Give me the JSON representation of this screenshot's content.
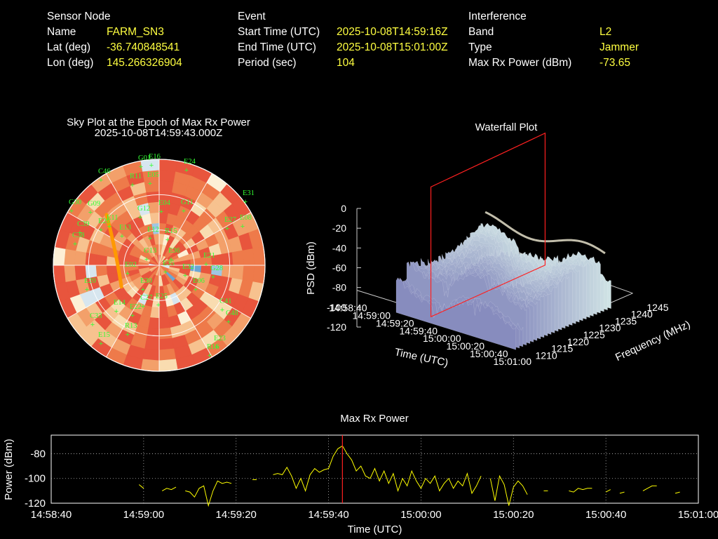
{
  "header": {
    "sensor": {
      "heading": "Sensor Node",
      "rows": [
        {
          "label": "Name",
          "value": "FARM_SN3"
        },
        {
          "label": "Lat (deg)",
          "value": "-36.740848541"
        },
        {
          "label": "Lon (deg)",
          "value": "145.266326904"
        }
      ]
    },
    "event": {
      "heading": "Event",
      "rows": [
        {
          "label": "Start Time (UTC)",
          "value": "2025-10-08T14:59:16Z"
        },
        {
          "label": "End Time (UTC)",
          "value": "2025-10-08T15:01:00Z"
        },
        {
          "label": "Period (sec)",
          "value": "104"
        }
      ]
    },
    "interference": {
      "heading": "Interference",
      "rows": [
        {
          "label": "Band",
          "value": "L2"
        },
        {
          "label": "Type",
          "value": "Jammer"
        },
        {
          "label": "Max Rx Power (dBm)",
          "value": "-73.65"
        }
      ]
    }
  },
  "colors": {
    "label": "#ffffff",
    "value": "#ffff40",
    "satellite_label": "#33ff33",
    "track": "#ff9900",
    "marker_line": "#ff2020",
    "power_line": "#ffff00",
    "grid": "#bbbbbb"
  },
  "chart_data": [
    {
      "type": "scatter",
      "title": "Sky Plot at the Epoch of Max Rx Power",
      "subtitle": "2025-10-08T14:59:43.000Z",
      "satellites": [
        "G01",
        "E16",
        "E24",
        "C46",
        "R11",
        "E05",
        "E31",
        "G30",
        "G09",
        "E26",
        "E11",
        "E13",
        "G12",
        "E04",
        "G11",
        "E27",
        "E08",
        "C38",
        "C39",
        "E12",
        "R15",
        "E36",
        "G13",
        "E02",
        "E32",
        "E21",
        "E06",
        "E20",
        "G28",
        "E30",
        "E25",
        "E22",
        "E14",
        "C27",
        "C41",
        "C48",
        "C33",
        "R13",
        "E15",
        "R16",
        "E23",
        "E35"
      ]
    },
    {
      "type": "area",
      "title": "Waterfall Plot",
      "xlabel": "Time (UTC)",
      "ylabel": "Frequency (MHz)",
      "zlabel": "PSD (dBm)",
      "x_ticks": [
        "14:58:40",
        "14:59:00",
        "14:59:20",
        "14:59:40",
        "15:00:00",
        "15:00:20",
        "15:00:40",
        "15:01:00"
      ],
      "y_ticks": [
        "1210",
        "1215",
        "1220",
        "1225",
        "1230",
        "1235",
        "1240",
        "1245"
      ],
      "z_ticks": [
        "0",
        "-20",
        "-40",
        "-60",
        "-80",
        "-100",
        "-120"
      ],
      "zlim": [
        -120,
        0
      ],
      "freq_range": [
        1210,
        1245
      ],
      "marker_time": "14:59:43"
    },
    {
      "type": "line",
      "title": "Max Rx Power",
      "xlabel": "Time (UTC)",
      "ylabel": "Power (dBm)",
      "x_ticks": [
        "14:58:40",
        "14:59:00",
        "14:59:20",
        "14:59:40",
        "15:00:00",
        "15:00:20",
        "15:00:40",
        "15:01:00"
      ],
      "y_ticks": [
        "-80",
        "-100",
        "-120"
      ],
      "ylim": [
        -120,
        -65
      ],
      "xlim_sec": [
        0,
        140
      ],
      "grid": true,
      "marker_sec": 63,
      "series": [
        {
          "segments": [
            [
              [
                19,
                -105
              ],
              [
                20,
                -108
              ]
            ],
            [
              [
                24,
                -110
              ],
              [
                25,
                -108
              ],
              [
                26,
                -109
              ],
              [
                27,
                -107
              ]
            ],
            [
              [
                29,
                -110
              ],
              [
                30,
                -111
              ],
              [
                31,
                -115
              ],
              [
                32,
                -108
              ],
              [
                33,
                -106
              ],
              [
                34,
                -122
              ],
              [
                35,
                -110
              ],
              [
                36,
                -102
              ],
              [
                37,
                -104
              ],
              [
                38,
                -103
              ],
              [
                39,
                -104
              ]
            ],
            [
              [
                44,
                -101
              ]
            ],
            [
              [
                48,
                -97
              ],
              [
                49,
                -96
              ],
              [
                50,
                -97
              ],
              [
                51,
                -91
              ],
              [
                52,
                -98
              ],
              [
                53,
                -108
              ],
              [
                54,
                -100
              ],
              [
                55,
                -110
              ],
              [
                56,
                -97
              ],
              [
                57,
                -92
              ],
              [
                58,
                -95
              ],
              [
                59,
                -93
              ],
              [
                60,
                -92
              ],
              [
                61,
                -82
              ],
              [
                62,
                -76
              ],
              [
                63,
                -73.65
              ],
              [
                64,
                -80
              ],
              [
                65,
                -85
              ],
              [
                66,
                -94
              ],
              [
                67,
                -90
              ],
              [
                68,
                -98
              ],
              [
                69,
                -100
              ],
              [
                70,
                -92
              ],
              [
                71,
                -102
              ],
              [
                72,
                -94
              ],
              [
                73,
                -104
              ],
              [
                74,
                -96
              ],
              [
                75,
                -110
              ],
              [
                76,
                -100
              ],
              [
                77,
                -106
              ],
              [
                78,
                -94
              ],
              [
                79,
                -102
              ],
              [
                80,
                -108
              ],
              [
                81,
                -100
              ],
              [
                82,
                -104
              ],
              [
                83,
                -98
              ],
              [
                84,
                -110
              ],
              [
                85,
                -104
              ],
              [
                86,
                -100
              ],
              [
                87,
                -108
              ],
              [
                88,
                -102
              ],
              [
                89,
                -106
              ],
              [
                90,
                -96
              ],
              [
                91,
                -112
              ],
              [
                92,
                -106
              ],
              [
                93,
                -98
              ]
            ],
            [
              [
                95,
                -100
              ],
              [
                96,
                -118
              ],
              [
                97,
                -98
              ],
              [
                98,
                -105
              ],
              [
                99,
                -122
              ],
              [
                100,
                -107
              ],
              [
                101,
                -102
              ],
              [
                102,
                -106
              ],
              [
                103,
                -113
              ]
            ],
            [
              [
                107,
                -110
              ]
            ],
            [
              [
                112,
                -110
              ],
              [
                113,
                -111
              ],
              [
                114,
                -108
              ],
              [
                115,
                -109
              ],
              [
                116,
                -108
              ],
              [
                117,
                -108
              ]
            ],
            [
              [
                120,
                -111
              ],
              [
                121,
                -109
              ]
            ],
            [
              [
                123,
                -112
              ],
              [
                124,
                -111
              ]
            ],
            [
              [
                128,
                -110
              ],
              [
                129,
                -108
              ],
              [
                130,
                -106
              ],
              [
                131,
                -106
              ]
            ],
            [
              [
                135,
                -112
              ],
              [
                136,
                -111
              ]
            ]
          ]
        }
      ]
    }
  ]
}
